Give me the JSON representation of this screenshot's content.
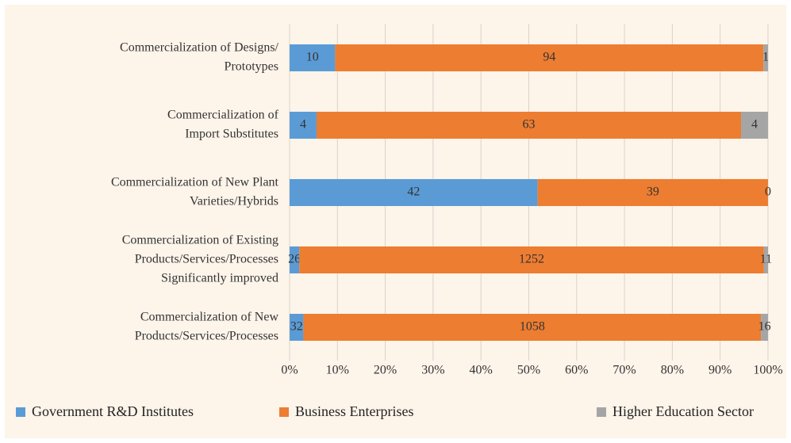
{
  "chart_data": {
    "type": "bar",
    "orientation": "horizontal",
    "stacking": "percent",
    "categories": [
      [
        "Commercialization of Designs/",
        "Prototypes"
      ],
      [
        "Commercialization of",
        "Import Substitutes"
      ],
      [
        "Commercialization of New Plant",
        "Varieties/Hybrids"
      ],
      [
        "Commercialization of Existing",
        "Products/Services/Processes",
        "Significantly improved"
      ],
      [
        "Commercialization of New",
        "Products/Services/Processes"
      ]
    ],
    "series": [
      {
        "name": "Government R&D Institutes",
        "color": "#5b9bd5",
        "values": [
          10,
          4,
          42,
          26,
          32
        ]
      },
      {
        "name": "Business Enterprises",
        "color": "#ed7d31",
        "values": [
          94,
          63,
          39,
          1252,
          1058
        ]
      },
      {
        "name": "Higher Education Sector",
        "color": "#a5a5a5",
        "values": [
          1,
          4,
          0,
          11,
          16
        ]
      }
    ],
    "xlim": [
      0,
      100
    ],
    "xticks": [
      {
        "value": 0,
        "label": "0%"
      },
      {
        "value": 10,
        "label": "10%"
      },
      {
        "value": 20,
        "label": "20%"
      },
      {
        "value": 30,
        "label": "30%"
      },
      {
        "value": 40,
        "label": "40%"
      },
      {
        "value": 50,
        "label": "50%"
      },
      {
        "value": 60,
        "label": "60%"
      },
      {
        "value": 70,
        "label": "70%"
      },
      {
        "value": 80,
        "label": "80%"
      },
      {
        "value": 90,
        "label": "90%"
      },
      {
        "value": 100,
        "label": "100%"
      }
    ],
    "grid": true,
    "legend": "bottom"
  }
}
